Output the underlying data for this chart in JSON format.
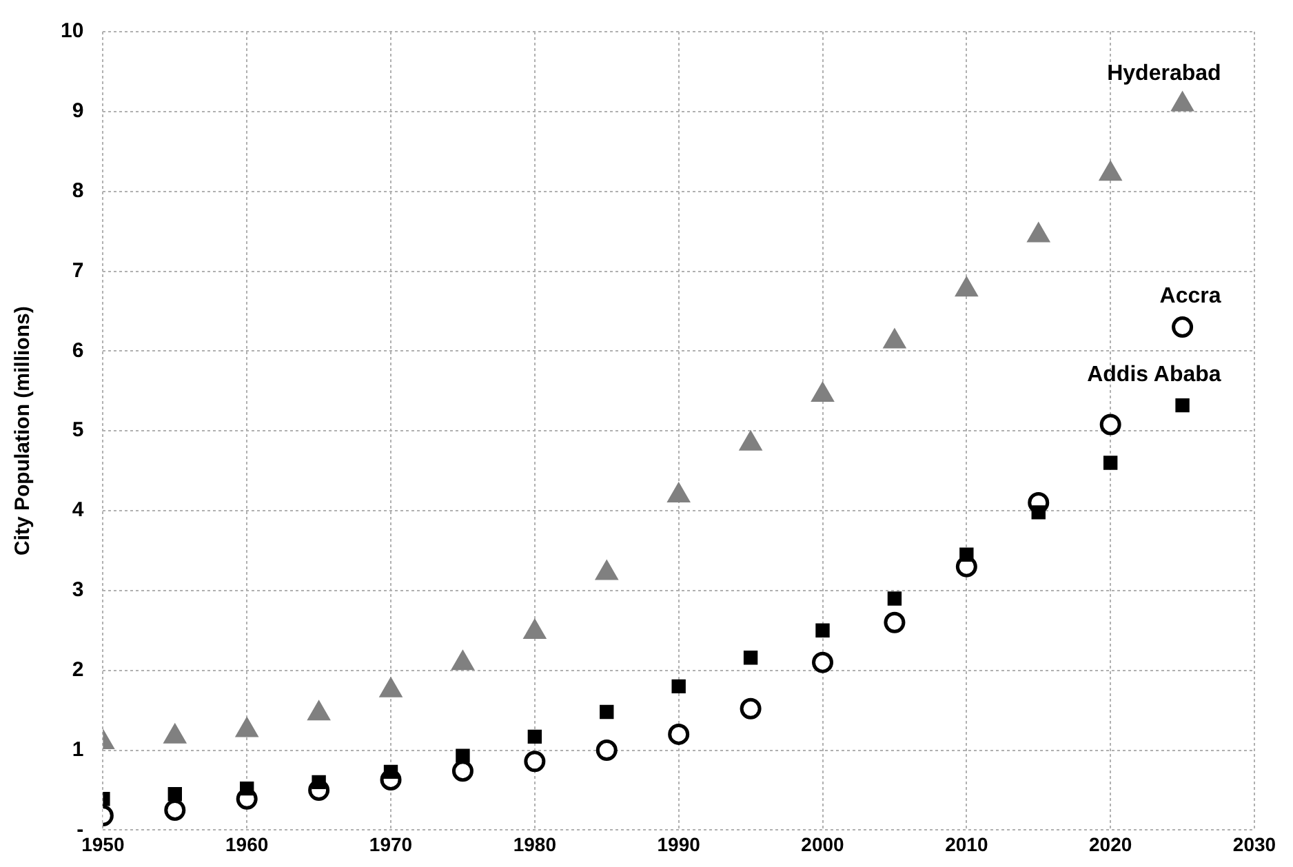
{
  "chart_data": {
    "type": "scatter",
    "ylabel": "City Population (millions)",
    "x": [
      1950,
      1955,
      1960,
      1965,
      1970,
      1975,
      1980,
      1985,
      1990,
      1995,
      2000,
      2005,
      2010,
      2015,
      2020,
      2025
    ],
    "series": [
      {
        "name": "Hyderabad",
        "color": "#808080",
        "marker": "triangle",
        "values": [
          1.1,
          1.17,
          1.25,
          1.46,
          1.75,
          2.09,
          2.48,
          3.22,
          4.19,
          4.84,
          5.45,
          6.12,
          6.77,
          7.45,
          8.22,
          9.09
        ]
      },
      {
        "name": "Addis Ababa",
        "color": "#000000",
        "marker": "square",
        "values": [
          0.39,
          0.45,
          0.52,
          0.6,
          0.73,
          0.93,
          1.17,
          1.48,
          1.8,
          2.16,
          2.5,
          2.9,
          3.45,
          3.98,
          4.6,
          5.32
        ]
      },
      {
        "name": "Accra",
        "color": "#000000",
        "marker": "circle",
        "values": [
          0.18,
          0.25,
          0.39,
          0.5,
          0.63,
          0.74,
          0.86,
          1.0,
          1.2,
          1.52,
          2.1,
          2.6,
          3.3,
          4.1,
          5.08,
          6.3
        ]
      }
    ],
    "xlim": [
      1950,
      2030
    ],
    "xticks": [
      1950,
      1960,
      1970,
      1980,
      1990,
      2000,
      2010,
      2020,
      2030
    ],
    "ylim": [
      0,
      10
    ],
    "yticks": [
      {
        "value": 0,
        "label": "-"
      },
      1,
      2,
      3,
      4,
      5,
      6,
      7,
      8,
      9,
      10
    ],
    "grid": true,
    "legend": false
  }
}
